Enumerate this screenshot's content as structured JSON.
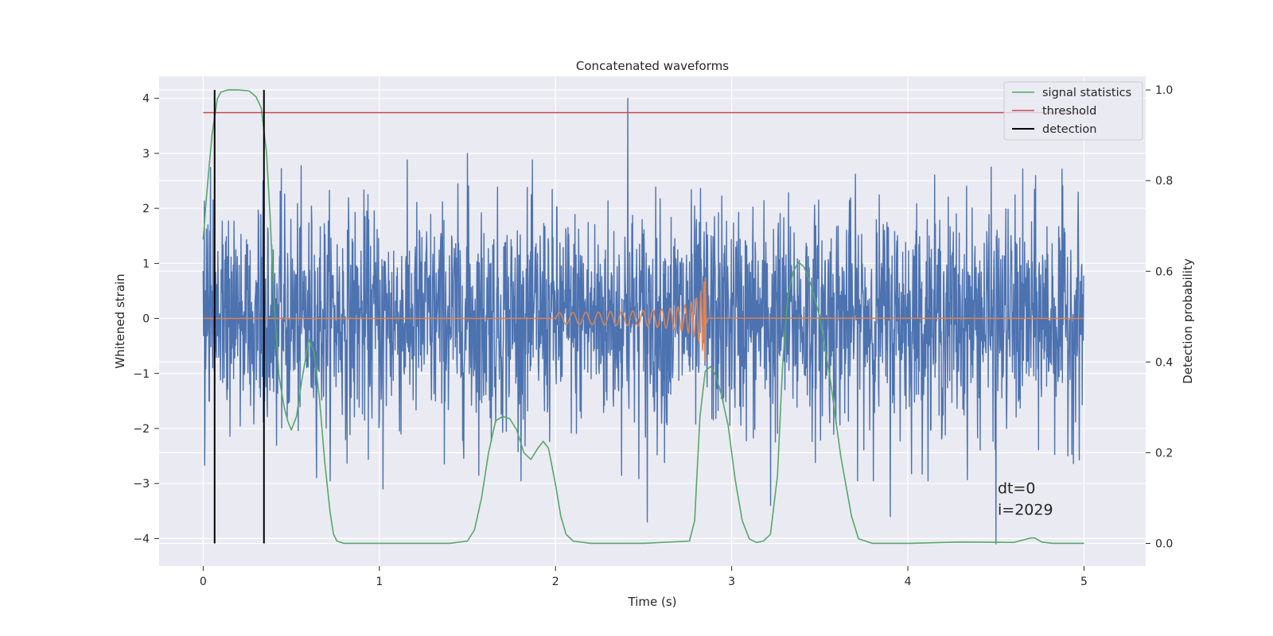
{
  "colors": {
    "background": "#EAEAF2",
    "grid": "#FFFFFF",
    "noise": "#4C72B0",
    "injection": "#DD8452",
    "signal_statistics": "#55A868",
    "threshold": "#C44E52",
    "detection": "#000000"
  },
  "chart_data": {
    "type": "line",
    "title": "Concatenated waveforms",
    "xlabel": "Time (s)",
    "ylabel": "Whitened strain",
    "y2label": "Detection probability",
    "xlim": [
      -0.25,
      5.35
    ],
    "ylim": [
      -4.5,
      4.4
    ],
    "y2lim": [
      -0.05,
      1.03
    ],
    "xticks": [
      0,
      1,
      2,
      3,
      4,
      5
    ],
    "yticks": [
      -4,
      -3,
      -2,
      -1,
      0,
      1,
      2,
      3,
      4
    ],
    "y2ticks": [
      0.0,
      0.2,
      0.4,
      0.6,
      0.8,
      1.0
    ],
    "grid": true,
    "legend_position": "top-right",
    "legend": [
      "signal statistics",
      "threshold",
      "detection"
    ],
    "noise": {
      "x_range": [
        0,
        5
      ],
      "typical_amplitude": 1.0,
      "range": [
        -4.1,
        4.0
      ],
      "peaks": [
        {
          "x": 2.41,
          "y": 4.0
        },
        {
          "x": 0.34,
          "y": 2.5
        },
        {
          "x": 1.5,
          "y": 3.0
        },
        {
          "x": 4.5,
          "y": -4.1
        },
        {
          "x": 3.22,
          "y": -3.4
        },
        {
          "x": 2.52,
          "y": -3.7
        },
        {
          "x": 3.9,
          "y": -3.6
        },
        {
          "x": 1.02,
          "y": -3.1
        }
      ]
    },
    "injection": {
      "x_range": [
        2.0,
        2.87
      ],
      "merger_time": 2.85,
      "peak_amplitude": 0.8,
      "start_amplitude": 0.07
    },
    "series": [
      {
        "name": "signal statistics",
        "axis": "right",
        "x": [
          0,
          0.02,
          0.05,
          0.08,
          0.1,
          0.14,
          0.2,
          0.26,
          0.3,
          0.33,
          0.36,
          0.38,
          0.4,
          0.43,
          0.46,
          0.48,
          0.5,
          0.53,
          0.56,
          0.6,
          0.63,
          0.66,
          0.69,
          0.72,
          0.74,
          0.76,
          0.8,
          1.0,
          1.2,
          1.4,
          1.5,
          1.54,
          1.58,
          1.62,
          1.66,
          1.7,
          1.74,
          1.78,
          1.82,
          1.86,
          1.9,
          1.93,
          1.96,
          2.0,
          2.03,
          2.06,
          2.1,
          2.2,
          2.5,
          2.76,
          2.79,
          2.8,
          2.82,
          2.85,
          2.88,
          2.91,
          2.94,
          2.98,
          3.02,
          3.06,
          3.1,
          3.14,
          3.18,
          3.22,
          3.26,
          3.29,
          3.32,
          3.35,
          3.38,
          3.41,
          3.45,
          3.5,
          3.56,
          3.62,
          3.68,
          3.72,
          3.8,
          4.0,
          4.3,
          4.6,
          4.7,
          4.72,
          4.76,
          4.82,
          5.0
        ],
        "y": [
          0.67,
          0.77,
          0.9,
          0.98,
          0.995,
          1.0,
          1.0,
          0.998,
          0.985,
          0.96,
          0.86,
          0.72,
          0.55,
          0.37,
          0.3,
          0.27,
          0.25,
          0.28,
          0.36,
          0.45,
          0.42,
          0.32,
          0.18,
          0.07,
          0.02,
          0.005,
          0.0,
          0.0,
          0.0,
          0.0,
          0.005,
          0.03,
          0.1,
          0.2,
          0.27,
          0.28,
          0.275,
          0.25,
          0.2,
          0.185,
          0.21,
          0.225,
          0.21,
          0.13,
          0.06,
          0.02,
          0.005,
          0.0,
          0.0,
          0.005,
          0.05,
          0.13,
          0.28,
          0.38,
          0.39,
          0.37,
          0.33,
          0.26,
          0.14,
          0.05,
          0.01,
          0.002,
          0.005,
          0.02,
          0.15,
          0.4,
          0.55,
          0.6,
          0.62,
          0.61,
          0.57,
          0.5,
          0.36,
          0.19,
          0.06,
          0.01,
          0.0,
          0.0,
          0.003,
          0.002,
          0.012,
          0.012,
          0.003,
          0.0,
          0.0
        ]
      },
      {
        "name": "threshold",
        "axis": "right",
        "x": [
          0,
          5
        ],
        "y": [
          0.95,
          0.95
        ]
      },
      {
        "name": "detection",
        "axis": "right",
        "type": "vlines",
        "x": [
          0.065,
          0.345
        ],
        "ymin": 0.0,
        "ymax": 1.0
      }
    ],
    "annotations": [
      {
        "text": "dt=0",
        "x": 4.51,
        "y": 0.11
      },
      {
        "text": "i=2029",
        "x": 4.51,
        "y": 0.063
      }
    ]
  }
}
